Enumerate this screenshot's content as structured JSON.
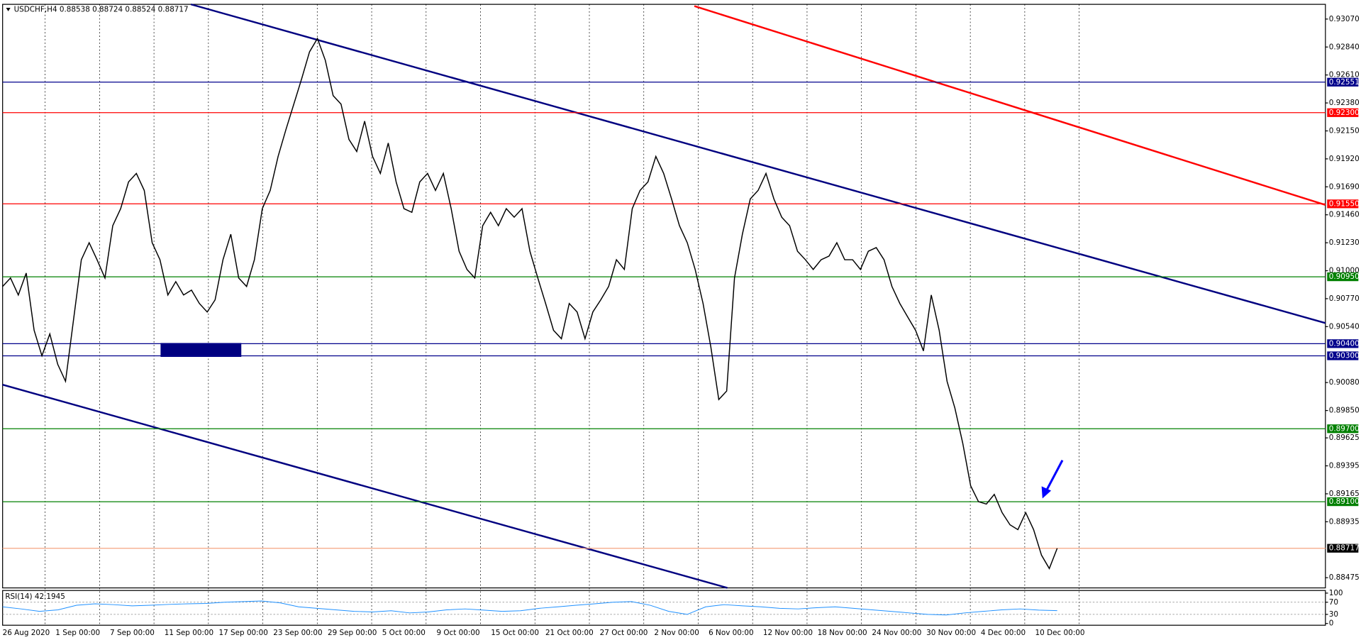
{
  "chart_data": [
    {
      "type": "line",
      "title": "USDCHF,H4  0.88538 0.88724 0.88524 0.88717",
      "color": "#000000",
      "values": [
        0.9087,
        0.9094,
        0.908,
        0.9098,
        0.9051,
        0.903,
        0.9048,
        0.9023,
        0.9009,
        0.9059,
        0.9109,
        0.9123,
        0.9109,
        0.9094,
        0.9137,
        0.9151,
        0.9173,
        0.918,
        0.9166,
        0.9123,
        0.9109,
        0.908,
        0.9091,
        0.908,
        0.9084,
        0.9073,
        0.9066,
        0.9076,
        0.9109,
        0.913,
        0.9094,
        0.9087,
        0.9109,
        0.9151,
        0.9166,
        0.9194,
        0.9216,
        0.9237,
        0.9258,
        0.928,
        0.9291,
        0.9273,
        0.9244,
        0.9237,
        0.9208,
        0.9198,
        0.9223,
        0.9194,
        0.918,
        0.9205,
        0.9173,
        0.9151,
        0.9148,
        0.9173,
        0.918,
        0.9166,
        0.918,
        0.9151,
        0.9116,
        0.9101,
        0.9094,
        0.9137,
        0.9148,
        0.9137,
        0.9151,
        0.9144,
        0.9151,
        0.9116,
        0.9094,
        0.9073,
        0.9051,
        0.9044,
        0.9073,
        0.9066,
        0.9044,
        0.9066,
        0.9076,
        0.9087,
        0.9109,
        0.9101,
        0.9151,
        0.9166,
        0.9173,
        0.9194,
        0.918,
        0.9159,
        0.9137,
        0.9123,
        0.9101,
        0.9073,
        0.9037,
        0.8994,
        0.9001,
        0.9094,
        0.913,
        0.9159,
        0.9166,
        0.918,
        0.9159,
        0.9144,
        0.9137,
        0.9116,
        0.9109,
        0.9101,
        0.9109,
        0.9112,
        0.9123,
        0.9109,
        0.9109,
        0.9101,
        0.9116,
        0.9119,
        0.9109,
        0.9087,
        0.9073,
        0.9062,
        0.9051,
        0.9034,
        0.908,
        0.9051,
        0.9009,
        0.8987,
        0.8958,
        0.8923,
        0.891,
        0.8908,
        0.8916,
        0.8901,
        0.8891,
        0.8887,
        0.8901,
        0.8887,
        0.8866,
        0.8855,
        0.88717
      ],
      "ylim": [
        0.88391,
        0.93191
      ],
      "yticks": [
        {
          "value": 0.9307,
          "label": "0.93070"
        },
        {
          "value": 0.9284,
          "label": "0.92840"
        },
        {
          "value": 0.9261,
          "label": "0.92610"
        },
        {
          "value": 0.9238,
          "label": "0.92380"
        },
        {
          "value": 0.9215,
          "label": "0.92150"
        },
        {
          "value": 0.9192,
          "label": "0.91920"
        },
        {
          "value": 0.9169,
          "label": "0.91690"
        },
        {
          "value": 0.9146,
          "label": "0.91460"
        },
        {
          "value": 0.9123,
          "label": "0.91230"
        },
        {
          "value": 0.91,
          "label": "0.91000"
        },
        {
          "value": 0.9077,
          "label": "0.90770"
        },
        {
          "value": 0.9054,
          "label": "0.90540"
        },
        {
          "value": 0.9008,
          "label": "0.90080"
        },
        {
          "value": 0.8985,
          "label": "0.89850"
        },
        0.89625,
        0.89395,
        0.89165,
        0.88935,
        0.88475
      ],
      "levels": [
        {
          "value": 0.92551,
          "label": "0.92551",
          "color": "#00008b"
        },
        {
          "value": 0.923,
          "label": "0.92300",
          "color": "#ff0000"
        },
        {
          "value": 0.9155,
          "label": "0.91550",
          "color": "#ff0000"
        },
        {
          "value": 0.9095,
          "label": "0.90950",
          "color": "#008000"
        },
        {
          "value": 0.904,
          "label": "0.90400",
          "color": "#00008b"
        },
        {
          "value": 0.903,
          "label": "0.90300",
          "color": "#00008b"
        },
        {
          "value": 0.897,
          "label": "0.89700",
          "color": "#008000"
        },
        {
          "value": 0.891,
          "label": "0.89100",
          "color": "#008000"
        },
        {
          "value": 0.88717,
          "label": "0.88717",
          "color": "#000000",
          "line_color": "#f4a582"
        }
      ],
      "time_labels": [
        "26 Aug 2020",
        "1 Sep 00:00",
        "7 Sep 00:00",
        "11 Sep 00:00",
        "17 Sep 00:00",
        "23 Sep 00:00",
        "29 Sep 00:00",
        "5 Oct 00:00",
        "9 Oct 00:00",
        "15 Oct 00:00",
        "21 Oct 00:00",
        "27 Oct 00:00",
        "2 Nov 00:00",
        "6 Nov 00:00",
        "12 Nov 00:00",
        "18 Nov 00:00",
        "24 Nov 00:00",
        "30 Nov 00:00",
        "4 Dec 00:00",
        "10 Dec 00:00"
      ]
    },
    {
      "type": "line",
      "title": "RSI(14) 42.1945",
      "color": "#1e90ff",
      "values": [
        55,
        48,
        40,
        45,
        60,
        65,
        62,
        58,
        60,
        63,
        65,
        66,
        70,
        72,
        74,
        68,
        55,
        50,
        45,
        40,
        38,
        42,
        35,
        38,
        45,
        48,
        44,
        40,
        42,
        50,
        55,
        60,
        65,
        70,
        72,
        60,
        40,
        30,
        55,
        62,
        58,
        55,
        50,
        48,
        52,
        55,
        50,
        45,
        40,
        35,
        30,
        28,
        35,
        40,
        45,
        48,
        44,
        42.1945
      ],
      "ylim": [
        0,
        100
      ],
      "yticks": [
        100,
        70,
        30,
        0
      ],
      "levels": [
        70,
        30
      ]
    }
  ]
}
